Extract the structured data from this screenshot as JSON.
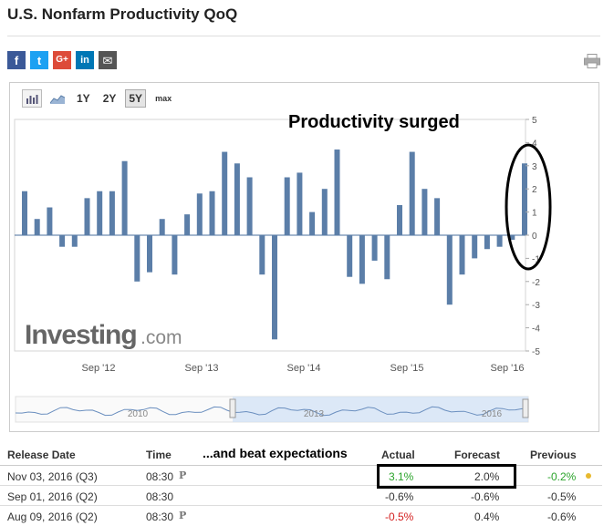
{
  "page": {
    "title": "U.S. Nonfarm Productivity QoQ"
  },
  "social": [
    {
      "name": "facebook-icon",
      "glyph": "f"
    },
    {
      "name": "twitter-icon",
      "glyph": "t"
    },
    {
      "name": "google-plus-icon",
      "glyph": "G+"
    },
    {
      "name": "linkedin-icon",
      "glyph": "in"
    },
    {
      "name": "email-icon",
      "glyph": "✉"
    }
  ],
  "toolbar": {
    "ranges": [
      "1Y",
      "2Y",
      "5Y",
      "max"
    ],
    "active_range": "5Y"
  },
  "chart_data": {
    "type": "bar",
    "annotation": "Productivity surged",
    "watermark_main": "Investing",
    "watermark_suffix": ".com",
    "ylim": [
      -5,
      5
    ],
    "yticks": [
      5,
      4,
      3,
      2,
      1,
      0,
      -1,
      -2,
      -3,
      -4,
      -5
    ],
    "xtick_labels": [
      "Sep '12",
      "Sep '13",
      "Sep '14",
      "Sep '15",
      "Sep '16"
    ],
    "values": [
      1.9,
      0.7,
      1.2,
      -0.5,
      -0.5,
      1.6,
      1.9,
      1.9,
      3.2,
      -2.0,
      -1.6,
      0.7,
      -1.7,
      0.9,
      1.8,
      1.9,
      3.6,
      3.1,
      2.5,
      -1.7,
      -4.5,
      2.5,
      2.7,
      1.0,
      2.0,
      3.7,
      -1.8,
      -2.1,
      -1.1,
      -1.9,
      1.3,
      3.6,
      2.0,
      1.6,
      -3.0,
      -1.7,
      -1.0,
      -0.6,
      -0.5,
      -0.2,
      3.1
    ],
    "navigator": {
      "labels": [
        "2010",
        "2013",
        "2016"
      ]
    }
  },
  "table": {
    "annotation": "...and beat expectations",
    "headers": {
      "release_date": "Release Date",
      "time": "Time",
      "actual": "Actual",
      "forecast": "Forecast",
      "previous": "Previous"
    },
    "rows": [
      {
        "date": "Nov 03, 2016 (Q3)",
        "time": "08:30",
        "prelim": "P",
        "actual": "3.1%",
        "forecast": "2.0%",
        "previous": "-0.2%"
      },
      {
        "date": "Sep 01, 2016 (Q2)",
        "time": "08:30",
        "prelim": "",
        "actual": "-0.6%",
        "forecast": "-0.6%",
        "previous": "-0.5%"
      },
      {
        "date": "Aug 09, 2016 (Q2)",
        "time": "08:30",
        "prelim": "P",
        "actual": "-0.5%",
        "forecast": "0.4%",
        "previous": "-0.6%"
      }
    ],
    "colors": {
      "positive": "#2aa32a",
      "negative": "#d31d1d",
      "bar": "#5b7ea8"
    }
  }
}
